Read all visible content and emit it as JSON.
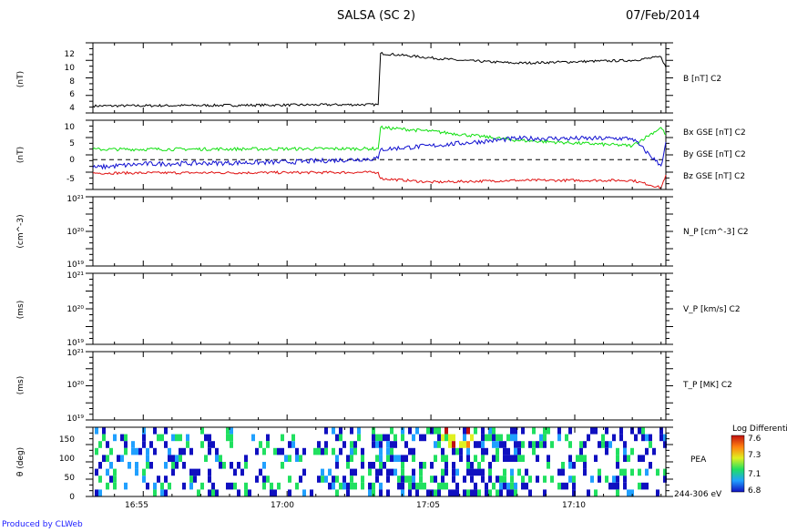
{
  "header": {
    "title": "SALSA (SC 2)",
    "date": "07/Feb/2014"
  },
  "footer": {
    "credit": "Produced by CLWeb"
  },
  "colors": {
    "axis": "#000000",
    "B": "#000000",
    "Bx": "#e01010",
    "By": "#10e010",
    "Bz": "#1010d0"
  },
  "time_axis": {
    "ticks": [
      "16:55",
      "17:00",
      "17:05",
      "17:10"
    ],
    "range": [
      "16:53:15",
      "17:13:10"
    ]
  },
  "chart_data": [
    {
      "type": "line",
      "panel": "B",
      "ylabel": "(nT)",
      "ylim": [
        3.5,
        13.5
      ],
      "yticks": [
        "4",
        "6",
        "8",
        "10",
        "12"
      ],
      "series": [
        {
          "name": "B [nT] C2",
          "x": [
            "16:53:15",
            "17:03:10",
            "17:03:15",
            "17:06",
            "17:08",
            "17:10",
            "17:12",
            "17:13:00",
            "17:13:10"
          ],
          "values": [
            4.5,
            4.7,
            12.0,
            11.0,
            10.6,
            10.8,
            11.0,
            11.5,
            10.0
          ]
        }
      ],
      "series_label": "B [nT] C2"
    },
    {
      "type": "line",
      "panel": "B_components",
      "ylabel": "(nT)",
      "ylim": [
        -8,
        11
      ],
      "yticks": [
        "-5",
        "0",
        "5",
        "10"
      ],
      "series": [
        {
          "name": "Bx GSE [nT] C2",
          "x": [
            "16:53:15",
            "17:03:10",
            "17:03:15",
            "17:05",
            "17:08",
            "17:12",
            "17:13:00",
            "17:13:10"
          ],
          "values": [
            -3.5,
            -3.3,
            -5.0,
            -6.0,
            -5.5,
            -5.5,
            -7.5,
            -4.0
          ]
        },
        {
          "name": "By GSE [nT] C2",
          "x": [
            "16:53:15",
            "17:03:10",
            "17:03:15",
            "17:05",
            "17:08",
            "17:12",
            "17:13:00",
            "17:13:10"
          ],
          "values": [
            3.0,
            3.2,
            9.0,
            8.0,
            5.5,
            4.0,
            9.0,
            7.0
          ]
        },
        {
          "name": "Bz GSE [nT] C2",
          "x": [
            "16:53:15",
            "16:55",
            "17:00",
            "17:03:10",
            "17:03:15",
            "17:05",
            "17:08",
            "17:12",
            "17:13:00",
            "17:13:10"
          ],
          "values": [
            -2.0,
            -1.0,
            -0.5,
            0.5,
            3.0,
            4.0,
            6.0,
            6.0,
            -1.5,
            5.0
          ]
        }
      ]
    },
    {
      "type": "line",
      "panel": "N_P",
      "ylabel": "(cm^-3)",
      "yscale": "log",
      "yticks": [
        "10¹⁹",
        "10²⁰",
        "10²¹"
      ],
      "series_label": "N_P [cm^-3] C2"
    },
    {
      "type": "line",
      "panel": "V_P",
      "ylabel": "(ms)",
      "yscale": "log",
      "yticks": [
        "10¹⁹",
        "10²⁰",
        "10²¹"
      ],
      "series_label": "V_P [km/s] C2"
    },
    {
      "type": "line",
      "panel": "T_P",
      "ylabel": "(ms)",
      "yscale": "log",
      "yticks": [
        "10¹⁹",
        "10²⁰",
        "10²¹"
      ],
      "series_label": "T_P [MK] C2"
    },
    {
      "type": "heatmap",
      "panel": "PEA",
      "ylabel": "θ (deg)",
      "ylim": [
        0,
        180
      ],
      "yticks": [
        "0",
        "50",
        "100",
        "150"
      ],
      "label": "PEA",
      "energy_label": "244-306 eV",
      "colorbar": {
        "title": "Log Differenti",
        "ticks": [
          "6.8",
          "7.1",
          "7.3",
          "7.6"
        ]
      }
    }
  ]
}
